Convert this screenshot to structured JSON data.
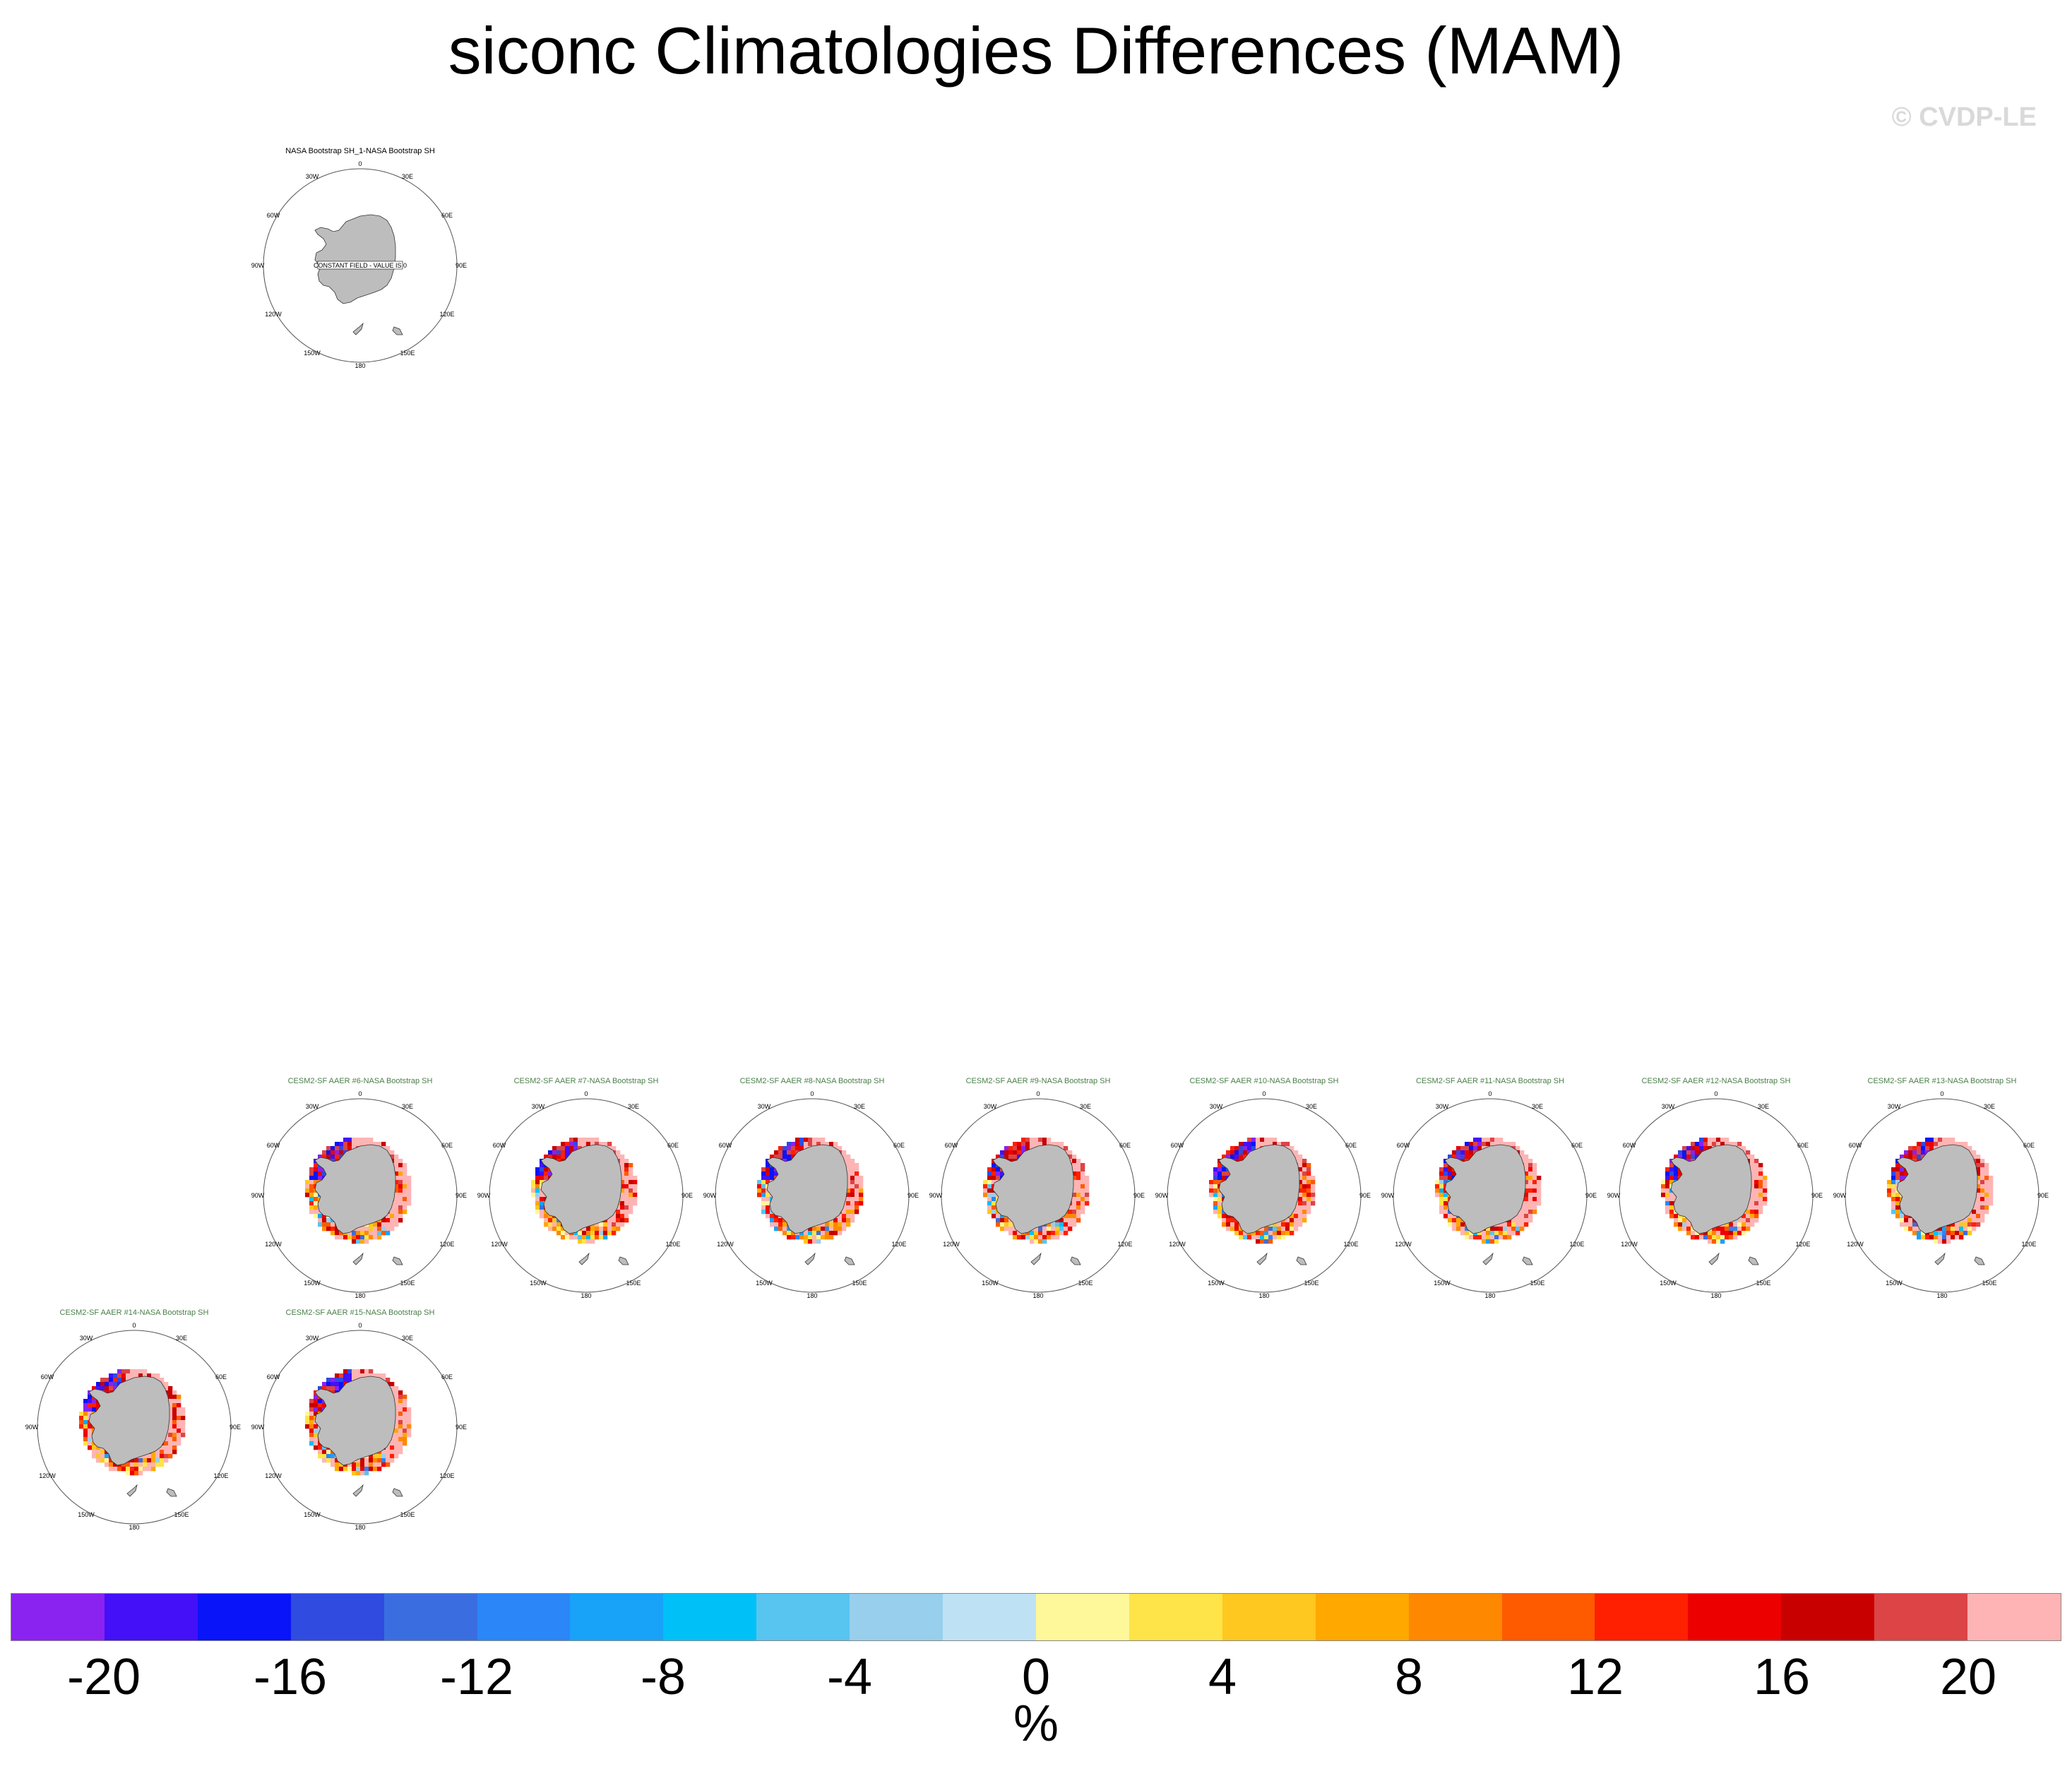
{
  "figure": {
    "title": "siconc Climatologies Differences (MAM)",
    "watermark": "© CVDP-LE",
    "unit": "%"
  },
  "map_labels": {
    "top": "0",
    "bottom": "180",
    "left": "90W",
    "right": "90E",
    "upper_left_1": "30W",
    "upper_left_2": "60W",
    "upper_right_1": "30E",
    "upper_right_2": "60E",
    "lower_left_1": "120W",
    "lower_left_2": "150W",
    "lower_right_1": "120E",
    "lower_right_2": "150E"
  },
  "panels": [
    {
      "title": "NASA Bootstrap SH_1-NASA Bootstrap SH",
      "kind": "obs",
      "note": "CONSTANT FIELD - VALUE IS 0"
    },
    {
      "title": "CESM2-SF AAER #6-NASA Bootstrap SH",
      "kind": "model"
    },
    {
      "title": "CESM2-SF AAER #7-NASA Bootstrap SH",
      "kind": "model"
    },
    {
      "title": "CESM2-SF AAER #8-NASA Bootstrap SH",
      "kind": "model"
    },
    {
      "title": "CESM2-SF AAER #9-NASA Bootstrap SH",
      "kind": "model"
    },
    {
      "title": "CESM2-SF AAER #10-NASA Bootstrap SH",
      "kind": "model"
    },
    {
      "title": "CESM2-SF AAER #11-NASA Bootstrap SH",
      "kind": "model"
    },
    {
      "title": "CESM2-SF AAER #12-NASA Bootstrap SH",
      "kind": "model"
    },
    {
      "title": "CESM2-SF AAER #13-NASA Bootstrap SH",
      "kind": "model"
    },
    {
      "title": "CESM2-SF AAER #14-NASA Bootstrap SH",
      "kind": "model"
    },
    {
      "title": "CESM2-SF AAER #15-NASA Bootstrap SH",
      "kind": "model"
    }
  ],
  "colorbar": {
    "colors": [
      "#8a22f0",
      "#4310f8",
      "#0a14f8",
      "#2f4be0",
      "#3a6ee0",
      "#2b86f8",
      "#18a2f8",
      "#00c0f8",
      "#58c4f0",
      "#98cfec",
      "#bee2f4",
      "#fef89a",
      "#fee448",
      "#fec820",
      "#fea800",
      "#fe8800",
      "#fe5a00",
      "#fe2000",
      "#ec0000",
      "#c80000",
      "#dc4446",
      "#feb4b4"
    ],
    "tick_labels": [
      "-20",
      "-16",
      "-12",
      "-8",
      "-4",
      "0",
      "4",
      "8",
      "12",
      "16",
      "20"
    ]
  }
}
